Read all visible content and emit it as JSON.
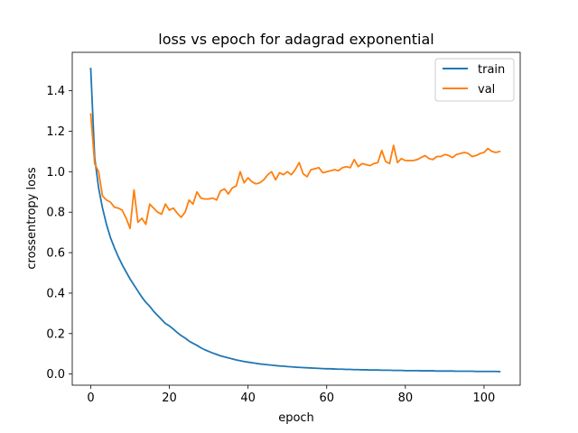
{
  "chart_data": {
    "type": "line",
    "title": "loss vs epoch for adagrad exponential",
    "xlabel": "epoch",
    "ylabel": "crossentropy loss",
    "xlim": [
      -4.7,
      109.2
    ],
    "ylim": [
      -0.055,
      1.59
    ],
    "xticks": [
      0,
      20,
      40,
      60,
      80,
      100
    ],
    "yticks": [
      0.0,
      0.2,
      0.4,
      0.6,
      0.8,
      1.0,
      1.2,
      1.4
    ],
    "xtick_labels": [
      "0",
      "20",
      "40",
      "60",
      "80",
      "100"
    ],
    "ytick_labels": [
      "0.0",
      "0.2",
      "0.4",
      "0.6",
      "0.8",
      "1.0",
      "1.2",
      "1.4"
    ],
    "grid": false,
    "legend_position": "top-right",
    "series": [
      {
        "name": "train",
        "color": "#1f77b4",
        "x": [
          0,
          1,
          2,
          3,
          4,
          5,
          6,
          7,
          8,
          9,
          10,
          11,
          12,
          13,
          14,
          15,
          16,
          17,
          18,
          19,
          20,
          21,
          22,
          23,
          24,
          25,
          26,
          27,
          28,
          29,
          30,
          31,
          32,
          33,
          34,
          35,
          36,
          37,
          38,
          39,
          40,
          41,
          42,
          43,
          44,
          45,
          46,
          47,
          48,
          49,
          50,
          51,
          52,
          53,
          54,
          55,
          56,
          57,
          58,
          59,
          60,
          61,
          62,
          63,
          64,
          65,
          66,
          67,
          68,
          69,
          70,
          71,
          72,
          73,
          74,
          75,
          76,
          77,
          78,
          79,
          80,
          81,
          82,
          83,
          84,
          85,
          86,
          87,
          88,
          89,
          90,
          91,
          92,
          93,
          94,
          95,
          96,
          97,
          98,
          99,
          100,
          101,
          102,
          103,
          104
        ],
        "y": [
          1.51,
          1.07,
          0.92,
          0.82,
          0.74,
          0.675,
          0.625,
          0.58,
          0.54,
          0.505,
          0.47,
          0.44,
          0.41,
          0.38,
          0.355,
          0.335,
          0.31,
          0.29,
          0.27,
          0.25,
          0.238,
          0.222,
          0.205,
          0.19,
          0.178,
          0.163,
          0.152,
          0.142,
          0.13,
          0.12,
          0.112,
          0.104,
          0.097,
          0.09,
          0.085,
          0.08,
          0.075,
          0.07,
          0.066,
          0.062,
          0.059,
          0.056,
          0.053,
          0.05,
          0.048,
          0.046,
          0.044,
          0.042,
          0.04,
          0.039,
          0.037,
          0.036,
          0.034,
          0.033,
          0.032,
          0.031,
          0.03,
          0.029,
          0.028,
          0.027,
          0.026,
          0.026,
          0.025,
          0.024,
          0.024,
          0.023,
          0.023,
          0.022,
          0.022,
          0.021,
          0.021,
          0.02,
          0.02,
          0.02,
          0.019,
          0.019,
          0.019,
          0.018,
          0.018,
          0.018,
          0.017,
          0.017,
          0.017,
          0.017,
          0.016,
          0.016,
          0.016,
          0.016,
          0.015,
          0.015,
          0.015,
          0.015,
          0.015,
          0.014,
          0.014,
          0.014,
          0.014,
          0.014,
          0.013,
          0.013,
          0.013,
          0.013,
          0.013,
          0.013,
          0.012
        ]
      },
      {
        "name": "val",
        "color": "#ff7f0e",
        "x": [
          0,
          1,
          2,
          3,
          4,
          5,
          6,
          7,
          8,
          9,
          10,
          11,
          12,
          13,
          14,
          15,
          16,
          17,
          18,
          19,
          20,
          21,
          22,
          23,
          24,
          25,
          26,
          27,
          28,
          29,
          30,
          31,
          32,
          33,
          34,
          35,
          36,
          37,
          38,
          39,
          40,
          41,
          42,
          43,
          44,
          45,
          46,
          47,
          48,
          49,
          50,
          51,
          52,
          53,
          54,
          55,
          56,
          57,
          58,
          59,
          60,
          61,
          62,
          63,
          64,
          65,
          66,
          67,
          68,
          69,
          70,
          71,
          72,
          73,
          74,
          75,
          76,
          77,
          78,
          79,
          80,
          81,
          82,
          83,
          84,
          85,
          86,
          87,
          88,
          89,
          90,
          91,
          92,
          93,
          94,
          95,
          96,
          97,
          98,
          99,
          100,
          101,
          102,
          103,
          104
        ],
        "y": [
          1.285,
          1.04,
          1.0,
          0.88,
          0.86,
          0.85,
          0.825,
          0.82,
          0.81,
          0.77,
          0.72,
          0.91,
          0.75,
          0.77,
          0.74,
          0.84,
          0.82,
          0.8,
          0.79,
          0.84,
          0.81,
          0.82,
          0.795,
          0.775,
          0.8,
          0.86,
          0.84,
          0.9,
          0.87,
          0.865,
          0.865,
          0.87,
          0.86,
          0.905,
          0.915,
          0.89,
          0.92,
          0.93,
          1.0,
          0.945,
          0.97,
          0.95,
          0.94,
          0.945,
          0.96,
          0.985,
          1.0,
          0.96,
          0.995,
          0.985,
          1.0,
          0.985,
          1.01,
          1.045,
          0.99,
          0.975,
          1.01,
          1.015,
          1.02,
          0.995,
          1.0,
          1.005,
          1.01,
          1.005,
          1.02,
          1.025,
          1.02,
          1.06,
          1.025,
          1.04,
          1.035,
          1.03,
          1.04,
          1.045,
          1.105,
          1.05,
          1.04,
          1.13,
          1.045,
          1.065,
          1.055,
          1.055,
          1.055,
          1.06,
          1.07,
          1.08,
          1.065,
          1.06,
          1.075,
          1.075,
          1.085,
          1.08,
          1.07,
          1.085,
          1.09,
          1.095,
          1.09,
          1.075,
          1.08,
          1.09,
          1.095,
          1.115,
          1.1,
          1.095,
          1.1
        ]
      }
    ]
  }
}
